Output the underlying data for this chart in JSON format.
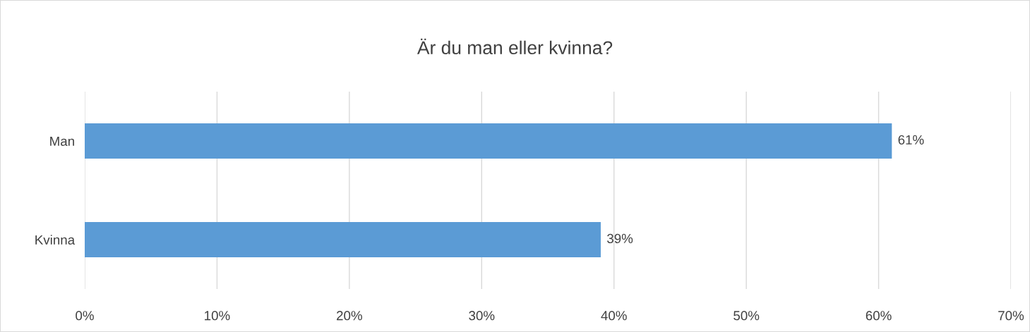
{
  "chart_data": {
    "type": "bar",
    "orientation": "horizontal",
    "title": "Är du man eller kvinna?",
    "categories": [
      "Man",
      "Kvinna"
    ],
    "series": [
      {
        "color": "#5b9bd5",
        "values": [
          61,
          39
        ],
        "value_labels": [
          "61%",
          "39%"
        ]
      }
    ],
    "xlim": [
      0,
      70
    ],
    "xticks": [
      {
        "value": 0,
        "label": "0%"
      },
      {
        "value": 10,
        "label": "10%"
      },
      {
        "value": 20,
        "label": "20%"
      },
      {
        "value": 30,
        "label": "30%"
      },
      {
        "value": 40,
        "label": "40%"
      },
      {
        "value": 50,
        "label": "50%"
      },
      {
        "value": 60,
        "label": "60%"
      },
      {
        "value": 70,
        "label": "70%"
      }
    ],
    "grid": "x",
    "legend": false
  }
}
